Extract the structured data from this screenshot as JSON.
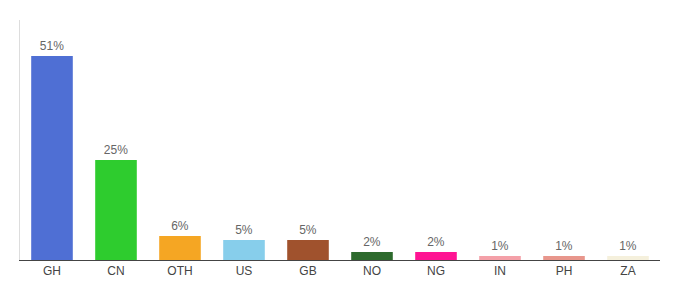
{
  "chart_data": {
    "type": "bar",
    "categories": [
      "GH",
      "CN",
      "OTH",
      "US",
      "GB",
      "NO",
      "NG",
      "IN",
      "PH",
      "ZA"
    ],
    "values": [
      51,
      25,
      6,
      5,
      5,
      2,
      2,
      1,
      1,
      1
    ],
    "value_labels": [
      "51%",
      "25%",
      "6%",
      "5%",
      "5%",
      "2%",
      "2%",
      "1%",
      "1%",
      "1%"
    ],
    "colors": [
      "#4F6FD4",
      "#2ECC2E",
      "#F5A623",
      "#87CEEB",
      "#A0522D",
      "#2D6A2D",
      "#FF1493",
      "#F4A0A8",
      "#E8968C",
      "#F5F0DC"
    ],
    "ylim": [
      0,
      60
    ],
    "data_labels": true,
    "tick_labels": "x",
    "grid": false
  }
}
